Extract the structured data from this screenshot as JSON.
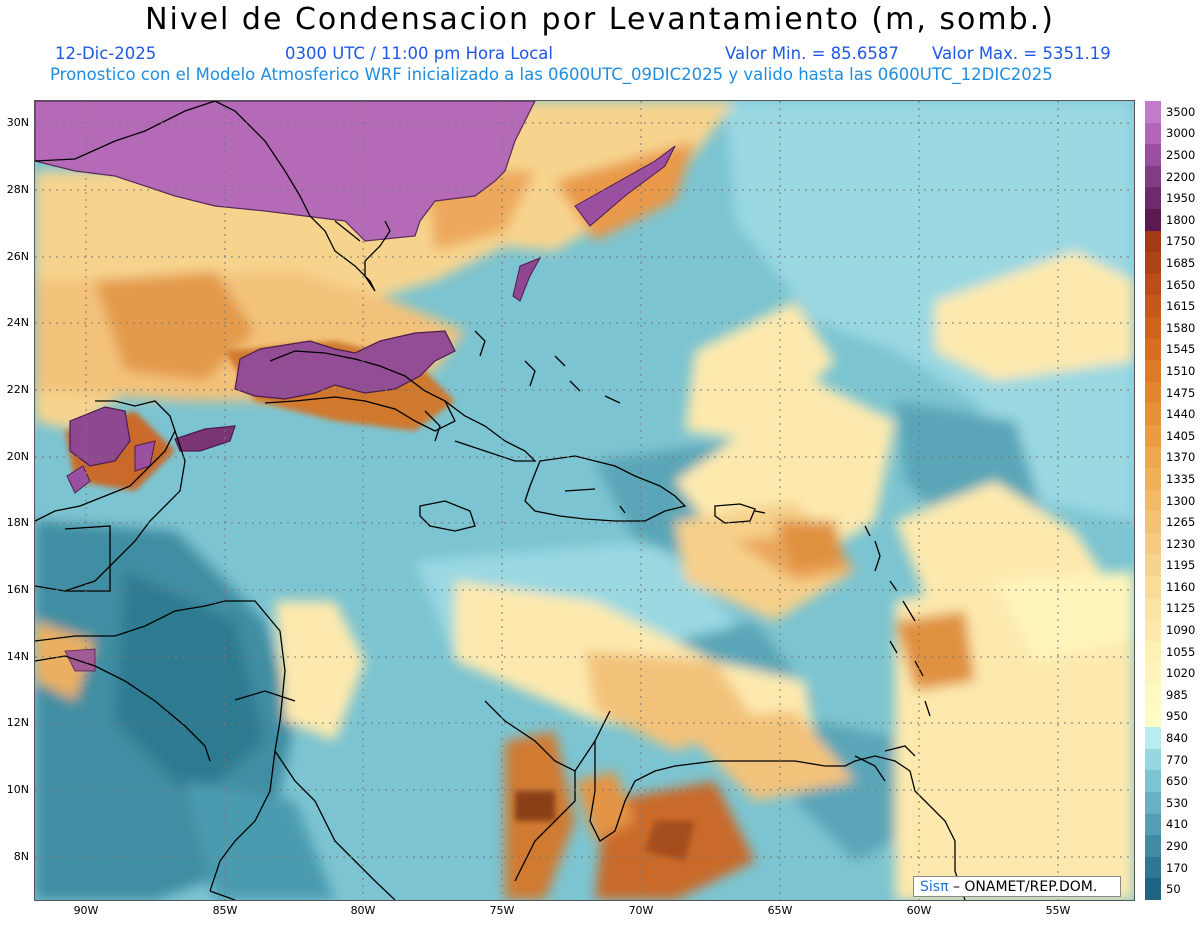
{
  "title": "Nivel de Condensacion por Levantamiento (m, somb.)",
  "date": "12-Dic-2025",
  "time": "0300 UTC / 11:00 pm Hora Local",
  "valmin": "Valor Min. = 85.6587",
  "valmax": "Valor Max. = 5351.19",
  "subtitle": "Pronostico con el Modelo Atmosferico WRF inicializado a las 0600UTC_09DIC2025 y valido hasta las  0600UTC_12DIC2025",
  "credit_brand": "Sisπ",
  "credit_org": "– ONAMET/REP.DOM.",
  "lat_labels": [
    "30N",
    "28N",
    "26N",
    "24N",
    "22N",
    "20N",
    "18N",
    "16N",
    "14N",
    "12N",
    "10N",
    "8N"
  ],
  "lon_labels": [
    "90W",
    "85W",
    "80W",
    "75W",
    "70W",
    "65W",
    "60W",
    "55W"
  ],
  "colorbar_levels": [
    "3500",
    "3000",
    "2500",
    "2200",
    "1950",
    "1800",
    "1750",
    "1685",
    "1650",
    "1615",
    "1580",
    "1545",
    "1510",
    "1475",
    "1440",
    "1405",
    "1370",
    "1335",
    "1300",
    "1265",
    "1230",
    "1195",
    "1160",
    "1125",
    "1090",
    "1055",
    "1020",
    "985",
    "950",
    "840",
    "770",
    "650",
    "530",
    "410",
    "290",
    "170",
    "50"
  ],
  "colorbar_colors": [
    "#c07cc8",
    "#b366b8",
    "#9b4fa0",
    "#843b86",
    "#6e2a6c",
    "#5a1a50",
    "#a23a18",
    "#ad4418",
    "#b94e1a",
    "#c4591c",
    "#cd641e",
    "#d66f22",
    "#dd7b28",
    "#e2862f",
    "#e69137",
    "#e99c42",
    "#eca74f",
    "#efb15c",
    "#f1ba69",
    "#f3c276",
    "#f5ca83",
    "#f7d38f",
    "#f9db9a",
    "#fbe2a5",
    "#fde8ae",
    "#fff0b4",
    "#fff5bb",
    "#fff8c0",
    "#fffbc6",
    "#b8ecef",
    "#96d7e0",
    "#7ec3d2",
    "#69b0c3",
    "#559db4",
    "#428aa4",
    "#307793",
    "#1f6583"
  ]
}
